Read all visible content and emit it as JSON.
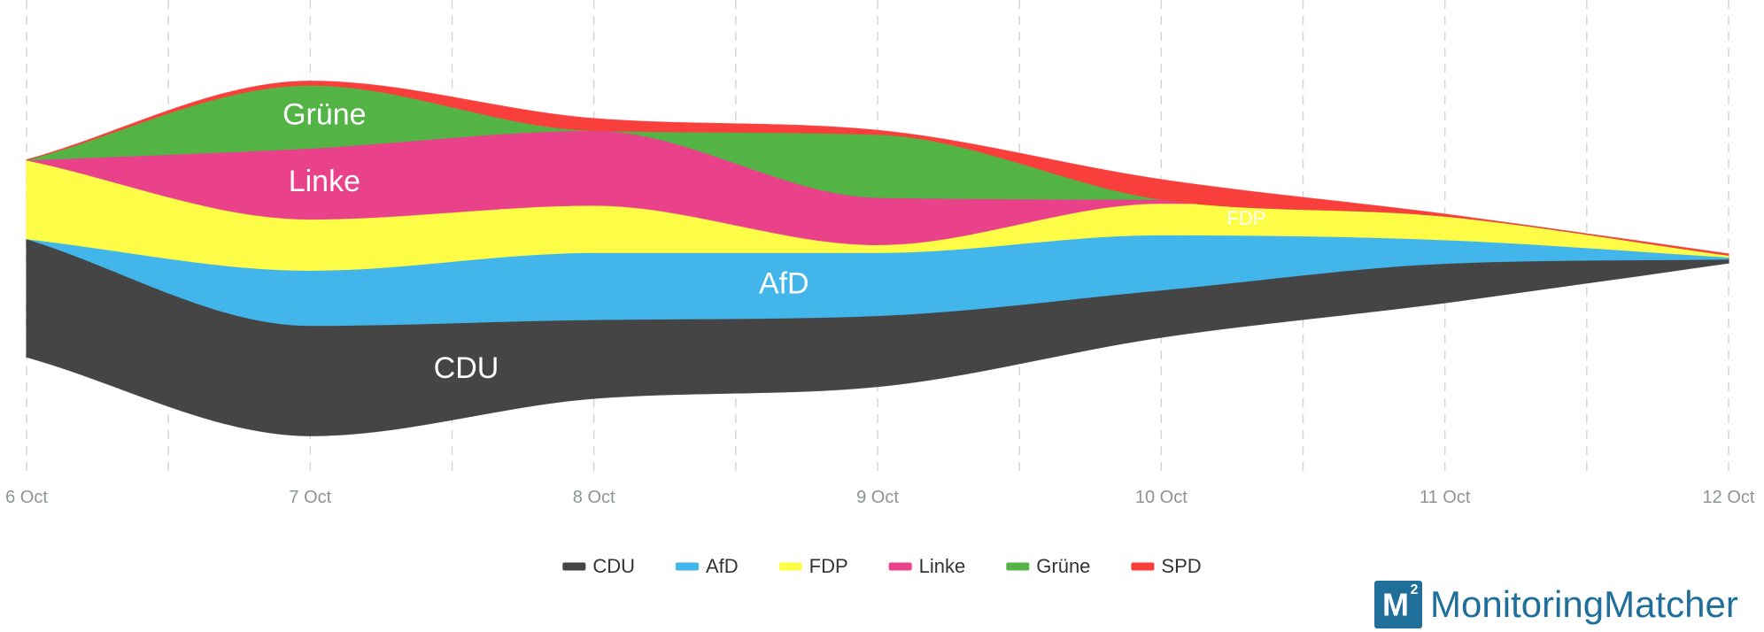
{
  "chart_data": {
    "type": "area",
    "x": [
      "6 Oct",
      "7 Oct",
      "8 Oct",
      "9 Oct",
      "10 Oct",
      "11 Oct",
      "12 Oct"
    ],
    "series": [
      {
        "name": "CDU",
        "color": "#454545",
        "values": [
          30,
          28,
          20,
          18,
          12,
          10,
          1
        ]
      },
      {
        "name": "AfD",
        "color": "#42b6ea",
        "values": [
          0,
          14,
          17,
          16,
          14,
          6,
          0.5
        ]
      },
      {
        "name": "FDP",
        "color": "#fdfd47",
        "values": [
          20,
          13,
          12,
          2,
          8,
          6,
          0.5
        ]
      },
      {
        "name": "Linke",
        "color": "#e9428a",
        "values": [
          0,
          18,
          19,
          12,
          1,
          0,
          0
        ]
      },
      {
        "name": "Grüne",
        "color": "#53b445",
        "values": [
          0,
          16,
          0,
          16,
          0,
          0,
          0
        ]
      },
      {
        "name": "SPD",
        "color": "#f93f3c",
        "values": [
          0,
          1,
          3,
          1,
          5,
          0.5,
          0.3
        ]
      }
    ],
    "stream_labels": [
      {
        "series": "CDU",
        "text": "CDU",
        "at": 1.55,
        "size": 34
      },
      {
        "series": "AfD",
        "text": "AfD",
        "at": 2.67,
        "size": 34
      },
      {
        "series": "Linke",
        "text": "Linke",
        "at": 1.05,
        "size": 34
      },
      {
        "series": "Grüne",
        "text": "Grüne",
        "at": 1.05,
        "size": 34
      },
      {
        "series": "FDP",
        "text": "FDP",
        "at": 4.3,
        "size": 22
      }
    ],
    "legend_position": "bottom",
    "grid": "dashed vertical"
  },
  "brand": {
    "logo_letter": "M",
    "logo_sup": "2",
    "name": "MonitoringMatcher"
  }
}
